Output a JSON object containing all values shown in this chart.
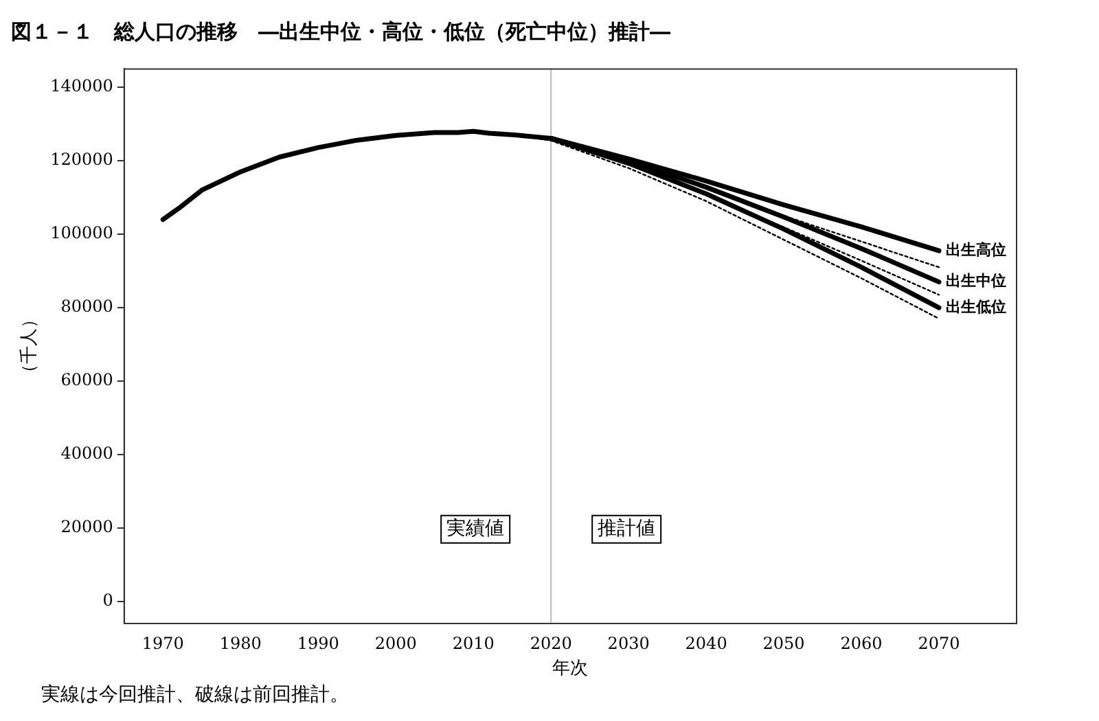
{
  "chart_data": {
    "type": "line",
    "title": "図１－１　総人口の推移　―出生中位・高位・低位（死亡中位）推計―",
    "xlabel": "年次",
    "ylabel": "（千人）",
    "xlim": [
      1965,
      2080
    ],
    "ylim": [
      -6000,
      145000
    ],
    "xticks": [
      1970,
      1980,
      1990,
      2000,
      2010,
      2020,
      2030,
      2040,
      2050,
      2060,
      2070
    ],
    "yticks": [
      0,
      20000,
      40000,
      60000,
      80000,
      100000,
      120000,
      140000
    ],
    "grid": false,
    "legend": false,
    "marker": "none",
    "series": [
      {
        "name": "出生高位",
        "color": "#000000",
        "line_style": "solid",
        "x": [
          2020,
          2030,
          2040,
          2050,
          2060,
          2070
        ],
        "values": [
          126100,
          120500,
          114500,
          108000,
          102000,
          95500
        ]
      },
      {
        "name": "出生中位",
        "color": "#000000",
        "line_style": "solid",
        "x": [
          1970,
          1972,
          1975,
          1980,
          1985,
          1990,
          1995,
          2000,
          2005,
          2008,
          2010,
          2012,
          2015,
          2020,
          2030,
          2040,
          2050,
          2060,
          2070
        ],
        "values": [
          104000,
          107000,
          112000,
          117000,
          121000,
          123600,
          125600,
          126900,
          127700,
          127700,
          128000,
          127500,
          127100,
          126100,
          120000,
          112800,
          104700,
          96100,
          87000
        ]
      },
      {
        "name": "出生低位",
        "color": "#000000",
        "line_style": "solid",
        "x": [
          2020,
          2030,
          2040,
          2050,
          2060,
          2070
        ],
        "values": [
          126100,
          119300,
          111000,
          101400,
          91000,
          80000
        ]
      },
      {
        "color": "#000000",
        "line_style": "dotted",
        "x": [
          2015,
          2020,
          2030,
          2040,
          2050,
          2060,
          2070
        ],
        "values": [
          127100,
          126000,
          120000,
          113000,
          105000,
          98000,
          91000
        ]
      },
      {
        "color": "#000000",
        "line_style": "dotted",
        "x": [
          2015,
          2020,
          2030,
          2040,
          2050,
          2060,
          2070
        ],
        "values": [
          127100,
          125800,
          119100,
          110900,
          101900,
          92800,
          83500
        ]
      },
      {
        "color": "#000000",
        "line_style": "dotted",
        "x": [
          2015,
          2020,
          2030,
          2040,
          2050,
          2060,
          2070
        ],
        "values": [
          127100,
          125500,
          118000,
          109000,
          98500,
          88000,
          77000
        ]
      }
    ],
    "ref_lines": [
      {
        "axis": "x",
        "value": 2020,
        "color": "#bbbbbb"
      }
    ],
    "annotations": [
      "実績値",
      "推計値",
      "実線は今回推計、破線は前回推計。"
    ]
  }
}
